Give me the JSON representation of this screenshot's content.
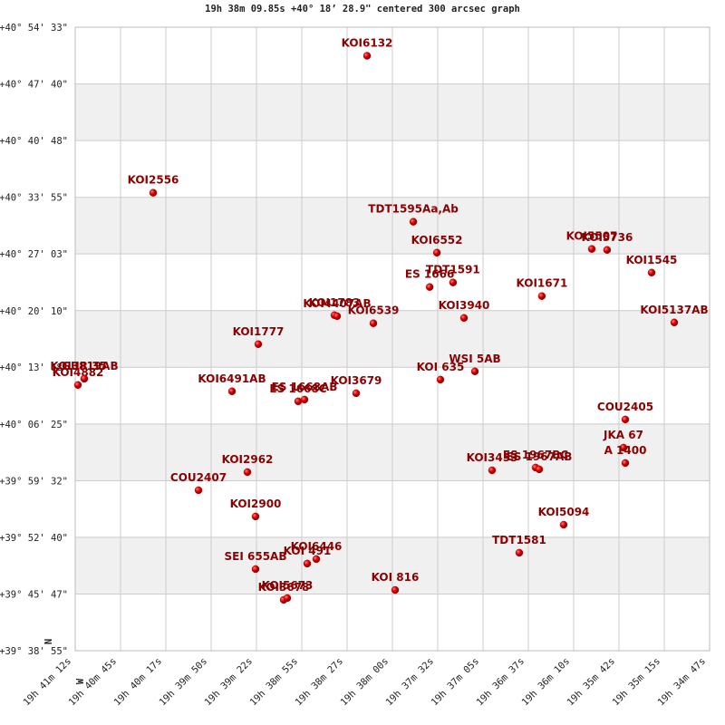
{
  "chart_data": {
    "type": "scatter",
    "title": "19h 38m 09.85s +40° 18’ 28.9\" centered 300 arcsec graph",
    "compass": [
      "N",
      "W"
    ],
    "color": "#cc0000",
    "label_color": "#8b0000",
    "band_color": "#f0f0f0",
    "grid": true,
    "point_labels": [
      "KOI6132",
      "KOI2556",
      "TDT1595Aa,Ab",
      "KOI6552",
      "TDT1591",
      "ES 1666",
      "KOI5507",
      "KOI5736",
      "KOI1545",
      "KOI1671",
      "KOI1783",
      "KOI4407AB",
      "KOI6539",
      "KOI3940",
      "KOI5137AB",
      "KOI1777",
      "GUR  35",
      "KOI4882",
      "KOI3819AB",
      "KOI6491AB",
      "ES 1668C",
      "ES 1668AB",
      "KOI3679",
      "KOI 635",
      "WSI   5AB",
      "COU2405",
      "JKA  67",
      "A  1400",
      "KOI3453",
      "ES 1967BC",
      "ES 1967AB",
      "KOI2962",
      "COU2407",
      "KOI2900",
      "KOI5094",
      "TDT1581",
      "KOI6446",
      "KOI 491",
      "SEI 655AB",
      "KOI3678",
      "KOI5673",
      "KOI 816"
    ],
    "x": [
      2294.9,
      2424.7,
      2266.8,
      2252.5,
      2242.7,
      2256.9,
      2158.5,
      2149.2,
      2122.2,
      2188.8,
      2314.7,
      2313.05,
      2291.05,
      2236.05,
      2108.45,
      2360.9,
      2466.5,
      2470.35,
      2466.5,
      2376.85,
      2336.7,
      2332.85,
      2301.5,
      2250.35,
      2229.45,
      2138.15,
      2139.25,
      2138.15,
      2219,
      2192.6,
      2190.4,
      2367.5,
      2397.2,
      2362.55,
      2175.55,
      2202.5,
      2325.7,
      2331.2,
      2362.55,
      2345.5,
      2343.3,
      2277.85
    ],
    "values": [
      6665,
      5668,
      5457,
      5232,
      5015,
      4982,
      5259,
      5252,
      5087,
      4916,
      4777,
      4770,
      4718,
      4757,
      4724,
      4566,
      4315,
      4269,
      4315,
      4223,
      4150,
      4163,
      4209,
      4308,
      4368,
      4018,
      3813,
      3701,
      3648,
      3668,
      3655,
      3635,
      3503,
      3312,
      3252,
      3048,
      3002,
      2969,
      2929,
      2705,
      2718,
      2777
    ],
    "xlim": [
      2472,
      2087
    ],
    "xticks": [
      {
        "value": 2472,
        "label": "19h 41m 12s"
      },
      {
        "value": 2444.5,
        "label": "19h 40m 45s"
      },
      {
        "value": 2417,
        "label": "19h 40m 17s"
      },
      {
        "value": 2389.5,
        "label": "19h 39m 50s"
      },
      {
        "value": 2362,
        "label": "19h 39m 22s"
      },
      {
        "value": 2334.5,
        "label": "19h 38m 55s"
      },
      {
        "value": 2307,
        "label": "19h 38m 27s"
      },
      {
        "value": 2279.5,
        "label": "19h 38m 00s"
      },
      {
        "value": 2252,
        "label": "19h 37m 32s"
      },
      {
        "value": 2224.5,
        "label": "19h 37m 05s"
      },
      {
        "value": 2197,
        "label": "19h 36m 37s"
      },
      {
        "value": 2169.5,
        "label": "19h 36m 10s"
      },
      {
        "value": 2142,
        "label": "19h 35m 42s"
      },
      {
        "value": 2114.5,
        "label": "19h 35m 15s"
      },
      {
        "value": 2087,
        "label": "19h 34m 47s"
      }
    ],
    "ylim": [
      2335,
      6873
    ],
    "yticks": [
      {
        "value": 6873,
        "label": "+40° 54' 33\""
      },
      {
        "value": 6460,
        "label": "+40° 47' 40\""
      },
      {
        "value": 6048,
        "label": "+40° 40' 48\""
      },
      {
        "value": 5635,
        "label": "+40° 33' 55\""
      },
      {
        "value": 5223,
        "label": "+40° 27' 03\""
      },
      {
        "value": 4810,
        "label": "+40° 20' 10\""
      },
      {
        "value": 4398,
        "label": "+40° 13' 18\""
      },
      {
        "value": 3985,
        "label": "+40° 06' 25\""
      },
      {
        "value": 3572,
        "label": "+39° 59' 32\""
      },
      {
        "value": 3160,
        "label": "+39° 52' 40\""
      },
      {
        "value": 2747,
        "label": "+39° 45' 47\""
      },
      {
        "value": 2335,
        "label": "+39° 38' 55\""
      }
    ]
  }
}
